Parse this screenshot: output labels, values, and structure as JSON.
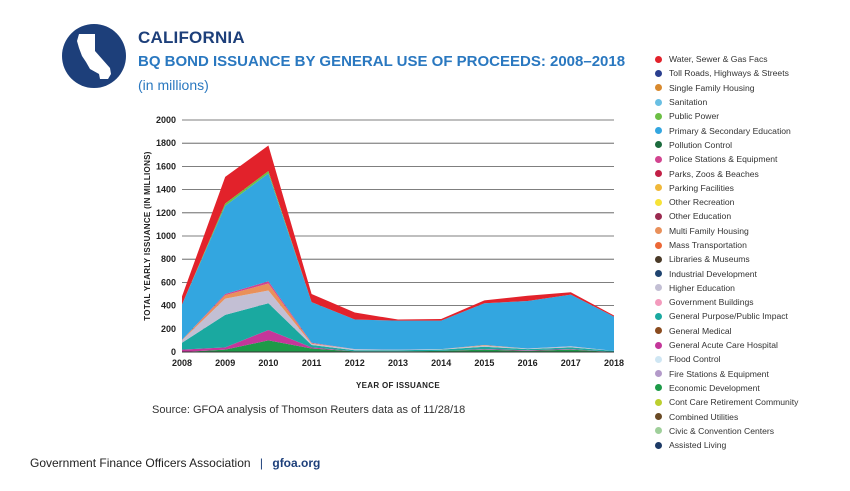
{
  "header": {
    "state": "CALIFORNIA",
    "title": "BQ BOND ISSUANCE BY GENERAL USE OF PROCEEDS: 2008–2018",
    "units": "(in millions)"
  },
  "badge": {
    "icon": "california-state-outline-icon",
    "color": "#1d3f7a"
  },
  "source": "Source: GFOA analysis of Thomson Reuters data as of 11/28/18",
  "footer": {
    "org": "Government Finance Officers Association",
    "separator": "|",
    "site": "gfoa.org"
  },
  "chart_data": {
    "type": "area",
    "stacked": true,
    "x": [
      2008,
      2009,
      2010,
      2011,
      2012,
      2013,
      2014,
      2015,
      2016,
      2017,
      2018
    ],
    "xlabel": "YEAR OF ISSUANCE",
    "ylabel": "TOTAL YEARLY ISSUANCE (IN MILLIONS)",
    "ylim": [
      0,
      2000
    ],
    "yticks": [
      0,
      200,
      400,
      600,
      800,
      1000,
      1200,
      1400,
      1600,
      1800,
      2000
    ],
    "grid": true,
    "legend_position": "right",
    "series": [
      {
        "name": "Economic Development",
        "color": "#1d9a48",
        "values": [
          0,
          20,
          100,
          30,
          5,
          5,
          10,
          20,
          10,
          20,
          0
        ]
      },
      {
        "name": "General Acute Care Hospital",
        "color": "#c4379a",
        "values": [
          20,
          20,
          90,
          10,
          0,
          0,
          0,
          5,
          5,
          5,
          0
        ]
      },
      {
        "name": "General Purpose/Public Impact",
        "color": "#1aa9a0",
        "values": [
          60,
          280,
          230,
          20,
          10,
          10,
          10,
          20,
          10,
          15,
          10
        ]
      },
      {
        "name": "Higher Education",
        "color": "#c3bfd4",
        "values": [
          20,
          140,
          110,
          10,
          10,
          5,
          5,
          10,
          5,
          10,
          0
        ]
      },
      {
        "name": "Multi Family Housing",
        "color": "#e9905a",
        "values": [
          5,
          30,
          60,
          5,
          0,
          0,
          0,
          5,
          0,
          0,
          0
        ]
      },
      {
        "name": "Police Stations & Equipment",
        "color": "#d2448f",
        "values": [
          0,
          10,
          20,
          5,
          0,
          0,
          0,
          0,
          0,
          0,
          0
        ]
      },
      {
        "name": "Primary & Secondary Education",
        "color": "#33a6e0",
        "values": [
          305,
          760,
          930,
          350,
          255,
          250,
          245,
          360,
          410,
          445,
          295
        ]
      },
      {
        "name": "Public Power",
        "color": "#6cbf45",
        "values": [
          0,
          20,
          20,
          0,
          0,
          0,
          0,
          0,
          0,
          0,
          0
        ]
      },
      {
        "name": "Water, Sewer & Gas Facs",
        "color": "#e2222b",
        "values": [
          70,
          230,
          220,
          70,
          60,
          10,
          15,
          25,
          45,
          20,
          10
        ]
      }
    ],
    "legend": [
      {
        "name": "Water, Sewer & Gas Facs",
        "color": "#e2222b"
      },
      {
        "name": "Toll Roads, Highways & Streets",
        "color": "#2a3f8f"
      },
      {
        "name": "Single Family Housing",
        "color": "#d8892e"
      },
      {
        "name": "Sanitation",
        "color": "#69bfe3"
      },
      {
        "name": "Public Power",
        "color": "#6cbf45"
      },
      {
        "name": "Primary & Secondary Education",
        "color": "#33a6e0"
      },
      {
        "name": "Pollution Control",
        "color": "#1c6b3d"
      },
      {
        "name": "Police Stations & Equipment",
        "color": "#d2448f"
      },
      {
        "name": "Parks, Zoos & Beaches",
        "color": "#c22046"
      },
      {
        "name": "Parking Facilities",
        "color": "#f0b83a"
      },
      {
        "name": "Other Recreation",
        "color": "#f7e337"
      },
      {
        "name": "Other Education",
        "color": "#9a2a50"
      },
      {
        "name": "Multi Family Housing",
        "color": "#e9905a"
      },
      {
        "name": "Mass Transportation",
        "color": "#ec6837"
      },
      {
        "name": "Libraries & Museums",
        "color": "#4a3a28"
      },
      {
        "name": "Industrial Development",
        "color": "#1f4470"
      },
      {
        "name": "Higher Education",
        "color": "#c3bfd4"
      },
      {
        "name": "Government Buildings",
        "color": "#f39bbd"
      },
      {
        "name": "General Purpose/Public Impact",
        "color": "#1aa9a0"
      },
      {
        "name": "General Medical",
        "color": "#8a4b1f"
      },
      {
        "name": "General Acute Care Hospital",
        "color": "#c4379a"
      },
      {
        "name": "Flood Control",
        "color": "#cfe6f3"
      },
      {
        "name": "Fire Stations & Equipment",
        "color": "#b39ac9"
      },
      {
        "name": "Economic Development",
        "color": "#1d9a48"
      },
      {
        "name": "Cont Care Retirement Community",
        "color": "#bccf2f"
      },
      {
        "name": "Combined Utilities",
        "color": "#6a4a25"
      },
      {
        "name": "Civic & Convention Centers",
        "color": "#9fcf9a"
      },
      {
        "name": "Assisted Living",
        "color": "#1d3a66"
      }
    ]
  }
}
